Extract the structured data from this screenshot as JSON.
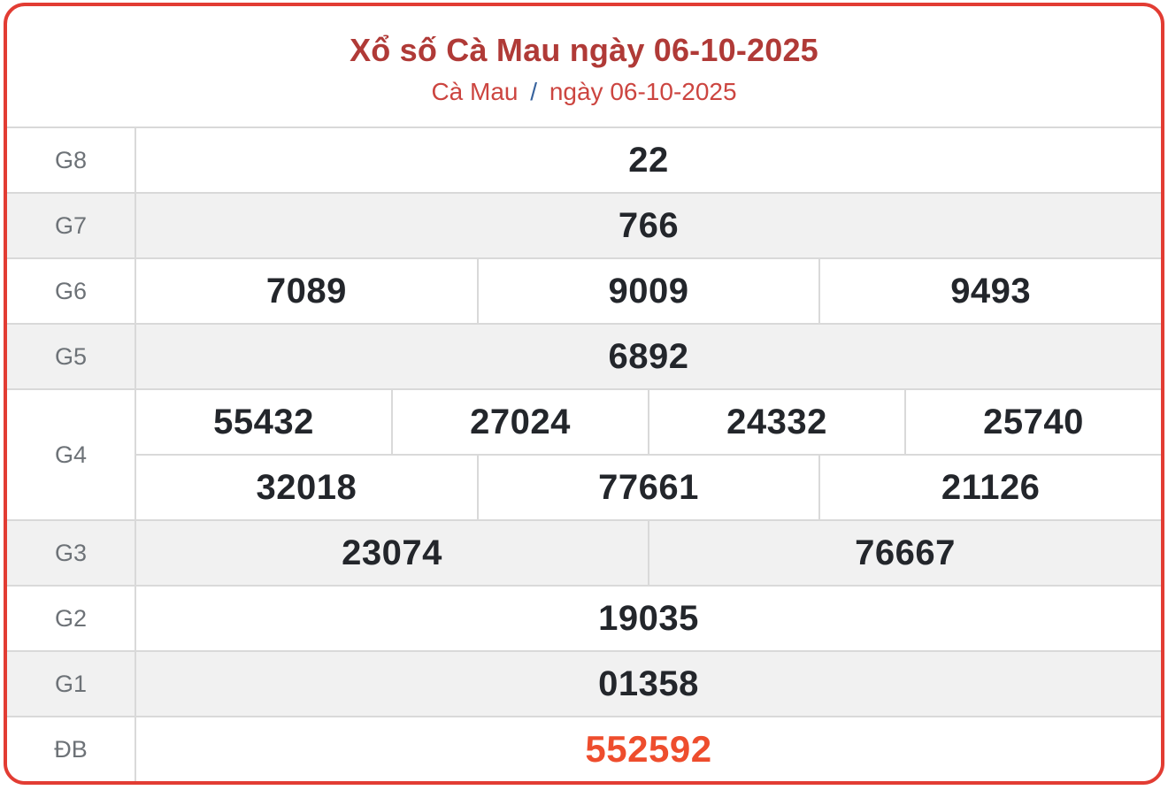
{
  "header": {
    "title": "Xổ số Cà Mau ngày 06-10-2025",
    "breadcrumb_region": "Cà Mau",
    "breadcrumb_separator": "/",
    "breadcrumb_date": "ngày 06-10-2025"
  },
  "colors": {
    "outer_border": "#e23c33",
    "title_red": "#b03a37",
    "breadcrumb_red": "#cc4540",
    "separator_blue": "#38639d",
    "number_dark": "#23262b",
    "special_prize_orange": "#ee4d2d",
    "label_gray": "#6d7277",
    "alt_row_bg": "#f1f1f1",
    "grid_line": "#d9d9d9"
  },
  "table": {
    "rows": [
      {
        "label": "G8",
        "cells": [
          "22"
        ]
      },
      {
        "label": "G7",
        "cells": [
          "766"
        ]
      },
      {
        "label": "G6",
        "cells": [
          "7089",
          "9009",
          "9493"
        ]
      },
      {
        "label": "G5",
        "cells": [
          "6892"
        ]
      },
      {
        "label": "G4",
        "lines": [
          [
            "55432",
            "27024",
            "24332",
            "25740"
          ],
          [
            "32018",
            "77661",
            "21126"
          ]
        ]
      },
      {
        "label": "G3",
        "cells": [
          "23074",
          "76667"
        ]
      },
      {
        "label": "G2",
        "cells": [
          "19035"
        ]
      },
      {
        "label": "G1",
        "cells": [
          "01358"
        ]
      },
      {
        "label": "ĐB",
        "cells": [
          "552592"
        ]
      }
    ]
  }
}
